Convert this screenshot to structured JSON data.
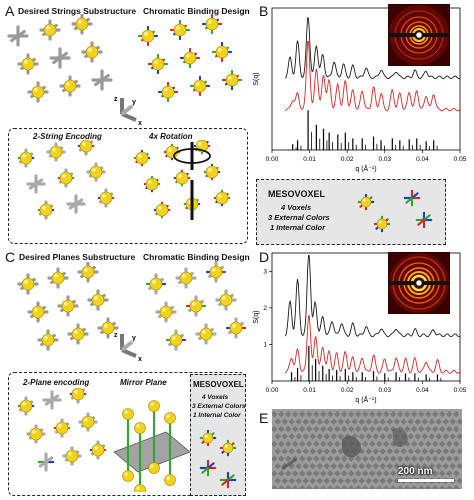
{
  "panels": {
    "A": {
      "letter": "A",
      "title_left": "Desired Strings Substructure",
      "title_right": "Chromatic Binding Design",
      "inset_left": "2-String Encoding",
      "inset_right": "4x Rotation",
      "axes": [
        "z",
        "y",
        "x"
      ]
    },
    "B": {
      "letter": "B",
      "mesovoxel": {
        "title": "MESOVOXEL",
        "lines": [
          "4 Voxels",
          "3 External Colors",
          "1 Internal Color"
        ]
      }
    },
    "C": {
      "letter": "C",
      "title_left": "Desired Planes Substructure",
      "title_right": "Chromatic Binding Design",
      "inset_left": "2-Plane encoding",
      "inset_right": "Mirror Plane",
      "axes": [
        "z",
        "y",
        "x"
      ],
      "mesovoxel": {
        "title": "MESOVOXEL",
        "lines": [
          "4 Voxels",
          "3 External Colors",
          "1 Internal Color"
        ]
      }
    },
    "D": {
      "letter": "D"
    },
    "E": {
      "letter": "E",
      "scalebar": "200 nm"
    }
  },
  "colors": {
    "black_curve": "#1a1a1a",
    "red_curve": "#d62828",
    "bars": "#000000",
    "sphere": "#f2d21a",
    "strand_blue": "#1f3fbf",
    "strand_green": "#2ea82e",
    "strand_red": "#d62828"
  },
  "chart_data": [
    {
      "panel": "B",
      "type": "line",
      "xlabel": "q (Å⁻¹)",
      "ylabel": "S(q)",
      "xlim": [
        0.0,
        0.05
      ],
      "xticks": [
        "0.00",
        "0.01",
        "0.02",
        "0.03",
        "0.04",
        "0.05"
      ],
      "series": [
        {
          "color": "#1a1a1a",
          "offset": 2,
          "peaks": [
            [
              0.0048,
              0.6
            ],
            [
              0.0068,
              1.1
            ],
            [
              0.0096,
              1.9
            ],
            [
              0.0118,
              1.0
            ],
            [
              0.0135,
              0.7
            ],
            [
              0.0165,
              0.5
            ],
            [
              0.019,
              0.4
            ],
            [
              0.0215,
              0.35
            ],
            [
              0.025,
              0.3
            ],
            [
              0.029,
              0.25
            ],
            [
              0.033,
              0.2
            ],
            [
              0.038,
              0.2
            ],
            [
              0.041,
              0.2
            ]
          ]
        },
        {
          "color": "#d62828",
          "offset": 1,
          "peaks": [
            [
              0.0055,
              0.3
            ],
            [
              0.0068,
              0.5
            ],
            [
              0.0096,
              2.2
            ],
            [
              0.0118,
              1.3
            ],
            [
              0.0137,
              1.1
            ],
            [
              0.0152,
              0.9
            ],
            [
              0.0175,
              0.8
            ],
            [
              0.0195,
              0.9
            ],
            [
              0.0215,
              0.6
            ],
            [
              0.024,
              0.6
            ],
            [
              0.027,
              0.7
            ],
            [
              0.029,
              0.5
            ],
            [
              0.032,
              0.6
            ],
            [
              0.034,
              0.5
            ],
            [
              0.0365,
              0.55
            ],
            [
              0.0385,
              0.6
            ],
            [
              0.041,
              0.45
            ],
            [
              0.043,
              0.5
            ]
          ]
        }
      ]
    },
    {
      "panel": "D",
      "type": "line",
      "xlabel": "q (Å⁻¹)",
      "ylabel": "S(q)",
      "xlim": [
        0.0,
        0.05
      ],
      "ylim": [
        0,
        3.5
      ],
      "xticks": [
        "0.00",
        "0.01",
        "0.02",
        "0.03",
        "0.04",
        "0.05"
      ],
      "yticks": [
        "1",
        "2",
        "3"
      ],
      "series": [
        {
          "color": "#1a1a1a",
          "offset": 1,
          "peaks": [
            [
              0.0048,
              0.9
            ],
            [
              0.0068,
              1.5
            ],
            [
              0.0098,
              2.3
            ],
            [
              0.0115,
              0.9
            ],
            [
              0.0135,
              0.5
            ],
            [
              0.016,
              0.4
            ],
            [
              0.0185,
              0.35
            ],
            [
              0.0215,
              0.3
            ],
            [
              0.025,
              0.25
            ],
            [
              0.029,
              0.2
            ],
            [
              0.033,
              0.2
            ],
            [
              0.038,
              0.15
            ],
            [
              0.043,
              0.15
            ]
          ]
        },
        {
          "color": "#d62828",
          "offset": 0,
          "peaks": [
            [
              0.0052,
              0.4
            ],
            [
              0.0068,
              0.6
            ],
            [
              0.0098,
              1.6
            ],
            [
              0.0116,
              1.0
            ],
            [
              0.0135,
              0.7
            ],
            [
              0.0152,
              0.55
            ],
            [
              0.0172,
              0.5
            ],
            [
              0.0195,
              0.55
            ],
            [
              0.0215,
              0.4
            ],
            [
              0.024,
              0.4
            ],
            [
              0.027,
              0.45
            ],
            [
              0.03,
              0.35
            ],
            [
              0.033,
              0.4
            ],
            [
              0.0355,
              0.35
            ],
            [
              0.038,
              0.35
            ],
            [
              0.041,
              0.3
            ],
            [
              0.044,
              0.3
            ]
          ]
        }
      ]
    }
  ]
}
